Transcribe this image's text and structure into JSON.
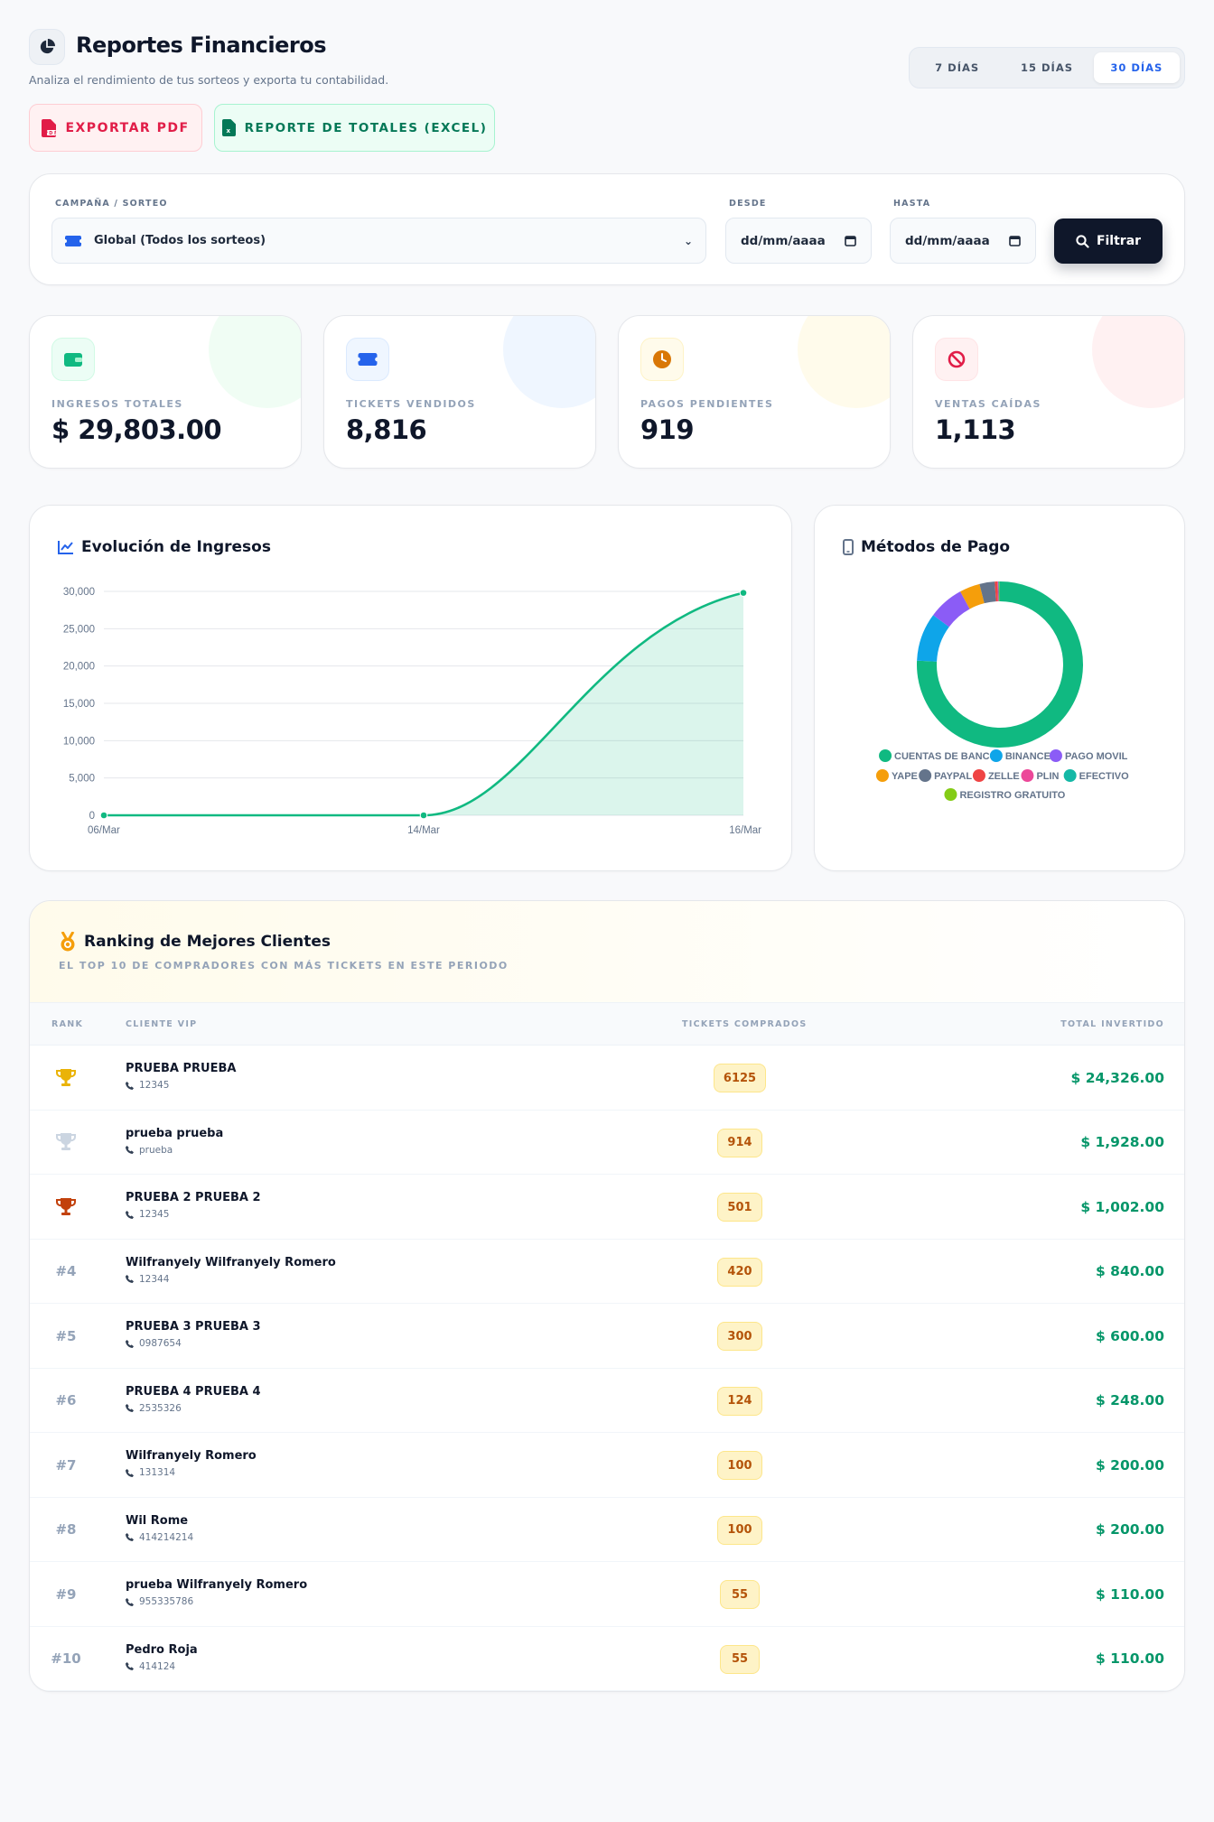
{
  "header": {
    "title": "Reportes Financieros",
    "subtitle": "Analiza el rendimiento de tus sorteos y exporta tu contabilidad."
  },
  "range": {
    "options": [
      "7 DÍAS",
      "15 DÍAS",
      "30 DÍAS"
    ],
    "selected": "30 DÍAS"
  },
  "actions": {
    "pdf_label": "EXPORTAR PDF",
    "excel_label": "REPORTE DE TOTALES (EXCEL)"
  },
  "filters": {
    "campaign_label": "CAMPAÑA / SORTEO",
    "campaign_value": "Global (Todos los sorteos)",
    "from_label": "DESDE",
    "from_value": "dd/mm/aaaa",
    "to_label": "HASTA",
    "to_value": "dd/mm/aaaa",
    "filter_button": "Filtrar"
  },
  "stats": [
    {
      "label": "INGRESOS TOTALES",
      "value": "$ 29,803.00",
      "icon": "wallet-icon",
      "color": "#10b981"
    },
    {
      "label": "TICKETS VENDIDOS",
      "value": "8,816",
      "icon": "ticket-icon",
      "color": "#2563eb"
    },
    {
      "label": "PAGOS PENDIENTES",
      "value": "919",
      "icon": "clock-icon",
      "color": "#d97706"
    },
    {
      "label": "VENTAS CAÍDAS",
      "value": "1,113",
      "icon": "ban-icon",
      "color": "#e11d48"
    }
  ],
  "revenue_chart": {
    "title": "Evolución de Ingresos"
  },
  "payment_chart": {
    "title": "Métodos de Pago"
  },
  "chart_data": [
    {
      "type": "area",
      "x": [
        "06/Mar",
        "14/Mar",
        "16/Mar"
      ],
      "values": [
        0,
        0,
        29803
      ],
      "ylim": [
        0,
        30000
      ],
      "yticks": [
        "0",
        "5,000",
        "10,000",
        "15,000",
        "20,000",
        "25,000",
        "30,000"
      ],
      "color": "#10b981",
      "grid": true
    },
    {
      "type": "pie",
      "donut": true,
      "legend_position": "bottom",
      "slices": [
        {
          "name": "CUENTAS DE BANCO",
          "value": 76.5,
          "color": "#10b981"
        },
        {
          "name": "BINANCE",
          "value": 9.5,
          "color": "#0ea5e9"
        },
        {
          "name": "PAGO MOVIL",
          "value": 7.0,
          "color": "#8b5cf6"
        },
        {
          "name": "YAPE",
          "value": 4.0,
          "color": "#f59e0b"
        },
        {
          "name": "PAYPAL",
          "value": 3.0,
          "color": "#64748b"
        },
        {
          "name": "ZELLE",
          "value": 0.5,
          "color": "#ef4444"
        },
        {
          "name": "PLIN",
          "value": 0.2,
          "color": "#ec4899"
        },
        {
          "name": "EFECTIVO",
          "value": 0.2,
          "color": "#14b8a6"
        },
        {
          "name": "REGISTRO GRATUITO",
          "value": 0.1,
          "color": "#84cc16"
        }
      ]
    }
  ],
  "ranking": {
    "title": "Ranking de Mejores Clientes",
    "subtitle": "EL TOP 10 DE COMPRADORES CON MÁS TICKETS EN ESTE PERIODO",
    "columns": [
      "RANK",
      "CLIENTE VIP",
      "TICKETS COMPRADOS",
      "TOTAL INVERTIDO"
    ],
    "rows": [
      {
        "rank": "",
        "trophy": "gold",
        "name": "PRUEBA PRUEBA",
        "phone": "12345",
        "tickets": "6125",
        "total": "$ 24,326.00"
      },
      {
        "rank": "",
        "trophy": "silver",
        "name": "prueba prueba",
        "phone": "prueba",
        "tickets": "914",
        "total": "$ 1,928.00"
      },
      {
        "rank": "",
        "trophy": "bronze",
        "name": "PRUEBA 2 PRUEBA 2",
        "phone": "12345",
        "tickets": "501",
        "total": "$ 1,002.00"
      },
      {
        "rank": "#4",
        "trophy": "",
        "name": "Wilfranyely Wilfranyely Romero",
        "phone": "12344",
        "tickets": "420",
        "total": "$ 840.00"
      },
      {
        "rank": "#5",
        "trophy": "",
        "name": "PRUEBA 3 PRUEBA 3",
        "phone": "0987654",
        "tickets": "300",
        "total": "$ 600.00"
      },
      {
        "rank": "#6",
        "trophy": "",
        "name": "PRUEBA 4 PRUEBA 4",
        "phone": "2535326",
        "tickets": "124",
        "total": "$ 248.00"
      },
      {
        "rank": "#7",
        "trophy": "",
        "name": "Wilfranyely Romero",
        "phone": "131314",
        "tickets": "100",
        "total": "$ 200.00"
      },
      {
        "rank": "#8",
        "trophy": "",
        "name": "Wil Rome",
        "phone": "414214214",
        "tickets": "100",
        "total": "$ 200.00"
      },
      {
        "rank": "#9",
        "trophy": "",
        "name": "prueba Wilfranyely Romero",
        "phone": "955335786",
        "tickets": "55",
        "total": "$ 110.00"
      },
      {
        "rank": "#10",
        "trophy": "",
        "name": "Pedro Roja",
        "phone": "414124",
        "tickets": "55",
        "total": "$ 110.00"
      }
    ]
  }
}
